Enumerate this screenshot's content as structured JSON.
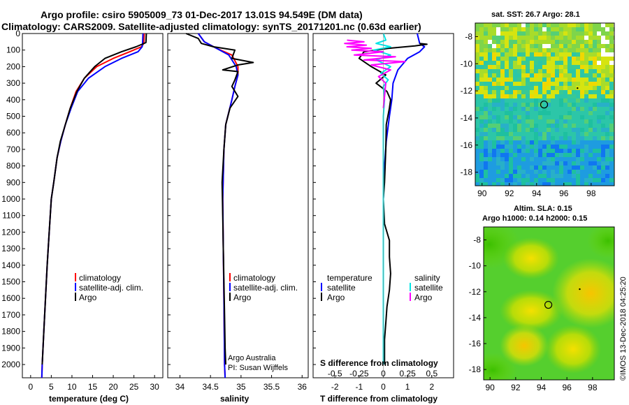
{
  "figure": {
    "title_line1": "Argo profile: csiro 5905009_73 01-Dec-2017 13.01S 94.549E (DM data)",
    "title_line2": "Climatology: CARS2009. Satellite-adjusted climatology: synTS_20171201.nc (0.63d earlier)",
    "credit_line1": "Argo Australia",
    "credit_line2": "PI: Susan Wijffels",
    "stamp": "©IMOS 13-Dec-2018 04:25:20"
  },
  "colors": {
    "climatology": "#ff0000",
    "satellite": "#0000ff",
    "argo": "#000000",
    "sal_satellite": "#00e5e5",
    "sal_argo": "#ff00ff"
  },
  "legends": {
    "temp": [
      "climatology",
      "satellite-adj. clim.",
      "Argo"
    ],
    "sal": [
      "climatology",
      "satellite-adj. clim.",
      "Argo"
    ],
    "diff_t_title": "temperature",
    "diff_t": [
      "satellite",
      "Argo"
    ],
    "diff_s_title": "salinity",
    "diff_s": [
      "satellite",
      "Argo"
    ]
  },
  "chart_data": [
    {
      "type": "line",
      "title": "",
      "xlabel": "temperature (deg C)",
      "ylabel": "",
      "xlim": [
        -2,
        32
      ],
      "ylim": [
        2080,
        0
      ],
      "xticks": [
        0,
        5,
        10,
        15,
        20,
        25,
        30
      ],
      "yticks": [
        0,
        100,
        200,
        300,
        400,
        500,
        600,
        700,
        800,
        900,
        1000,
        1100,
        1200,
        1300,
        1400,
        1500,
        1600,
        1700,
        1800,
        1900,
        2000
      ],
      "series": [
        {
          "name": "climatology",
          "color": "#ff0000",
          "points": [
            [
              27.5,
              0
            ],
            [
              27.4,
              60
            ],
            [
              26.8,
              80
            ],
            [
              24,
              110
            ],
            [
              20,
              150
            ],
            [
              16,
              200
            ],
            [
              13,
              270
            ],
            [
              11,
              350
            ],
            [
              9.6,
              450
            ],
            [
              8.4,
              550
            ],
            [
              7.3,
              650
            ],
            [
              6.4,
              750
            ],
            [
              5.6,
              900
            ],
            [
              5.0,
              1000
            ],
            [
              4.5,
              1200
            ],
            [
              4.0,
              1400
            ],
            [
              3.6,
              1600
            ],
            [
              3.2,
              1800
            ],
            [
              2.8,
              2000
            ],
            [
              2.7,
              2080
            ]
          ]
        },
        {
          "name": "satellite-adj. clim.",
          "color": "#0000ff",
          "points": [
            [
              27.2,
              0
            ],
            [
              27.1,
              60
            ],
            [
              27.0,
              80
            ],
            [
              26,
              110
            ],
            [
              22,
              150
            ],
            [
              18,
              200
            ],
            [
              14,
              270
            ],
            [
              11.4,
              350
            ],
            [
              9.8,
              450
            ],
            [
              8.4,
              550
            ],
            [
              7.3,
              650
            ],
            [
              6.4,
              750
            ],
            [
              5.6,
              900
            ],
            [
              5.0,
              1000
            ],
            [
              4.5,
              1200
            ],
            [
              4.0,
              1400
            ],
            [
              3.6,
              1600
            ],
            [
              3.2,
              1800
            ],
            [
              2.8,
              2000
            ],
            [
              2.7,
              2080
            ]
          ]
        },
        {
          "name": "Argo",
          "color": "#000000",
          "points": [
            [
              28.0,
              0
            ],
            [
              27.9,
              55
            ],
            [
              25.5,
              80
            ],
            [
              22,
              110
            ],
            [
              18,
              150
            ],
            [
              15.5,
              200
            ],
            [
              13,
              270
            ],
            [
              11.2,
              350
            ],
            [
              9.6,
              450
            ],
            [
              8.4,
              550
            ],
            [
              7.2,
              650
            ],
            [
              6.4,
              750
            ],
            [
              5.6,
              900
            ],
            [
              5.0,
              1000
            ],
            [
              4.5,
              1200
            ],
            [
              4.0,
              1400
            ],
            [
              3.6,
              1600
            ],
            [
              3.2,
              1800
            ],
            [
              2.8,
              2000
            ]
          ]
        }
      ]
    },
    {
      "type": "line",
      "title": "",
      "xlabel": "salinity",
      "xlim": [
        33.8,
        36.1
      ],
      "ylim": [
        2080,
        0
      ],
      "xticks": [
        34,
        34.5,
        35,
        35.5,
        36
      ],
      "series": [
        {
          "name": "climatology",
          "color": "#ff0000",
          "points": [
            [
              34.3,
              0
            ],
            [
              34.4,
              50
            ],
            [
              34.6,
              90
            ],
            [
              34.85,
              130
            ],
            [
              34.95,
              200
            ],
            [
              34.95,
              250
            ],
            [
              34.9,
              320
            ],
            [
              34.85,
              400
            ],
            [
              34.75,
              550
            ],
            [
              34.72,
              700
            ],
            [
              34.7,
              1000
            ],
            [
              34.71,
              1300
            ],
            [
              34.72,
              1600
            ],
            [
              34.73,
              2000
            ],
            [
              34.74,
              2080
            ]
          ]
        },
        {
          "name": "satellite-adj. clim.",
          "color": "#0000ff",
          "points": [
            [
              34.3,
              0
            ],
            [
              34.4,
              50
            ],
            [
              34.6,
              90
            ],
            [
              34.8,
              130
            ],
            [
              34.92,
              200
            ],
            [
              34.95,
              250
            ],
            [
              34.9,
              320
            ],
            [
              34.85,
              400
            ],
            [
              34.75,
              550
            ],
            [
              34.72,
              700
            ],
            [
              34.7,
              1000
            ],
            [
              34.71,
              1300
            ],
            [
              34.72,
              1600
            ],
            [
              34.73,
              2000
            ],
            [
              34.74,
              2080
            ]
          ]
        },
        {
          "name": "Argo",
          "color": "#000000",
          "points": [
            [
              34.1,
              0
            ],
            [
              34.3,
              30
            ],
            [
              34.35,
              60
            ],
            [
              34.55,
              80
            ],
            [
              34.9,
              100
            ],
            [
              34.85,
              150
            ],
            [
              35.2,
              175
            ],
            [
              34.95,
              190
            ],
            [
              34.7,
              220
            ],
            [
              34.95,
              230
            ],
            [
              34.9,
              280
            ],
            [
              34.85,
              320
            ],
            [
              34.95,
              380
            ],
            [
              34.82,
              450
            ],
            [
              34.75,
              550
            ],
            [
              34.72,
              700
            ],
            [
              34.69,
              900
            ],
            [
              34.7,
              1100
            ],
            [
              34.71,
              1300
            ],
            [
              34.72,
              1500
            ],
            [
              34.73,
              1700
            ],
            [
              34.74,
              1900
            ],
            [
              34.75,
              2000
            ]
          ]
        }
      ]
    },
    {
      "type": "line",
      "title": "",
      "xlabel": "T difference from climatology",
      "xlabel_top": "S difference from climatology",
      "xlim": [
        -2.9,
        2.9
      ],
      "ylim": [
        2080,
        0
      ],
      "xticks": [
        -2,
        -1,
        0,
        1,
        2
      ],
      "xticks_top_labels": [
        "-0.5",
        "-0.25",
        "0",
        "0.25",
        "0.5"
      ],
      "xticks_top_values": [
        -2,
        -1,
        0,
        1,
        2
      ],
      "series": [
        {
          "name": "temperature satellite",
          "color": "#0000ff",
          "points": [
            [
              1.4,
              0
            ],
            [
              1.5,
              60
            ],
            [
              1.7,
              80
            ],
            [
              1.5,
              110
            ],
            [
              1.0,
              150
            ],
            [
              0.6,
              220
            ],
            [
              0.4,
              300
            ],
            [
              0.35,
              400
            ],
            [
              0.25,
              500
            ],
            [
              0.12,
              650
            ],
            [
              0.05,
              800
            ],
            [
              0.0,
              1000
            ],
            [
              0.0,
              1400
            ],
            [
              0.0,
              2000
            ]
          ]
        },
        {
          "name": "temperature Argo",
          "color": "#000000",
          "points": [
            [
              1.5,
              60
            ],
            [
              1.8,
              65
            ],
            [
              1.3,
              75
            ],
            [
              0.2,
              90
            ],
            [
              -0.8,
              110
            ],
            [
              -1.0,
              150
            ],
            [
              -0.5,
              200
            ],
            [
              0.1,
              250
            ],
            [
              -0.3,
              300
            ],
            [
              0.15,
              350
            ],
            [
              0.3,
              400
            ],
            [
              0.25,
              450
            ],
            [
              0.12,
              550
            ],
            [
              0.1,
              700
            ],
            [
              0.05,
              900
            ],
            [
              0.0,
              1000
            ],
            [
              0.05,
              1150
            ],
            [
              0.25,
              1250
            ],
            [
              0.25,
              1350
            ],
            [
              0.3,
              1450
            ],
            [
              0.25,
              1550
            ],
            [
              0.15,
              1650
            ],
            [
              0.1,
              1750
            ],
            [
              0.05,
              1850
            ],
            [
              0.05,
              1950
            ],
            [
              0.05,
              2000
            ]
          ]
        },
        {
          "name": "salinity satellite",
          "color": "#00e5e5",
          "points": [
            [
              0.0,
              0
            ],
            [
              0.1,
              40
            ],
            [
              -0.3,
              60
            ],
            [
              0.3,
              80
            ],
            [
              -0.4,
              100
            ],
            [
              0.3,
              130
            ],
            [
              -0.3,
              160
            ],
            [
              0.3,
              200
            ],
            [
              -0.1,
              240
            ],
            [
              0.2,
              280
            ],
            [
              0.0,
              320
            ],
            [
              0.05,
              400
            ],
            [
              0.0,
              500
            ],
            [
              0.0,
              800
            ],
            [
              0.0,
              1000
            ],
            [
              0.0,
              1400
            ],
            [
              0.0,
              2000
            ]
          ]
        },
        {
          "name": "salinity Argo",
          "color": "#ff00ff",
          "points": [
            [
              -1.5,
              40
            ],
            [
              -0.8,
              50
            ],
            [
              -1.6,
              60
            ],
            [
              -0.7,
              70
            ],
            [
              -1.5,
              80
            ],
            [
              -0.5,
              90
            ],
            [
              -1.3,
              100
            ],
            [
              0.0,
              110
            ],
            [
              -1.2,
              130
            ],
            [
              0.5,
              140
            ],
            [
              -0.8,
              160
            ],
            [
              0.9,
              170
            ],
            [
              -0.5,
              190
            ],
            [
              0.3,
              220
            ],
            [
              -0.2,
              260
            ],
            [
              0.1,
              300
            ],
            [
              0.05,
              380
            ],
            [
              0.0,
              450
            ]
          ]
        }
      ]
    },
    {
      "type": "heatmap",
      "title": "sat. SST: 26.7 Argo: 28.1",
      "xlim": [
        89.5,
        99.7
      ],
      "ylim": [
        -19.0,
        -7.0
      ],
      "xticks": [
        90,
        92,
        94,
        96,
        98
      ],
      "yticks": [
        -8,
        -10,
        -12,
        -14,
        -16,
        -18
      ],
      "marker": {
        "lon": 94.55,
        "lat": -13.01
      },
      "track_point": {
        "lon": 97.0,
        "lat": -11.8
      }
    },
    {
      "type": "heatmap",
      "title": "Altim. SLA: 0.15",
      "subtitle": "Argo h1000: 0.14 h2000: 0.15",
      "xlim": [
        89.5,
        99.7
      ],
      "ylim": [
        -18.8,
        -7.0
      ],
      "xticks": [
        90,
        92,
        94,
        96,
        98
      ],
      "yticks": [
        -8,
        -10,
        -12,
        -14,
        -16,
        -18
      ],
      "marker": {
        "lon": 94.55,
        "lat": -13.01
      },
      "track_point": {
        "lon": 97.0,
        "lat": -11.8
      }
    }
  ]
}
